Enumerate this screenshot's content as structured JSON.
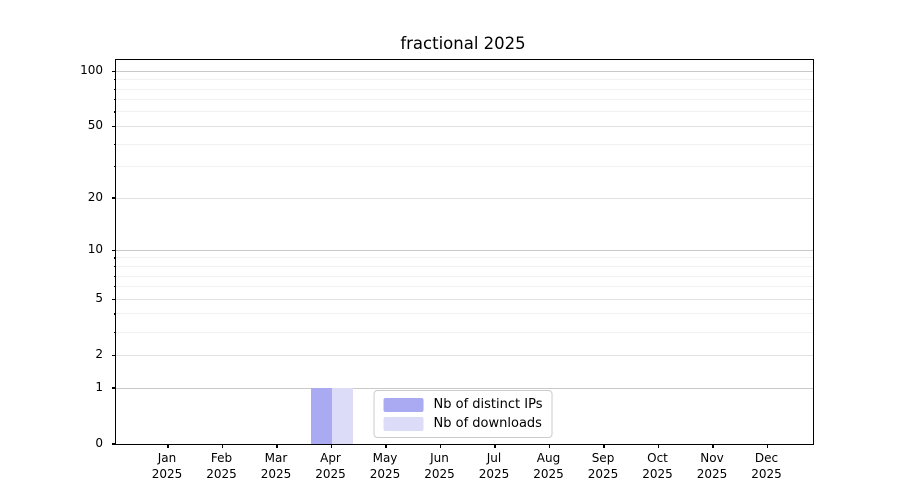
{
  "chart_data": {
    "type": "bar",
    "title": "fractional 2025",
    "x": {
      "year": "2025",
      "months": [
        "Jan",
        "Feb",
        "Mar",
        "Apr",
        "May",
        "Jun",
        "Jul",
        "Aug",
        "Sep",
        "Oct",
        "Nov",
        "Dec"
      ]
    },
    "y_axis": {
      "scale": "log1p",
      "ticks": [
        0,
        1,
        2,
        5,
        10,
        20,
        50,
        100
      ],
      "minor_ticks": [
        3,
        4,
        6,
        7,
        8,
        9,
        30,
        40,
        60,
        70,
        80,
        90
      ],
      "strong_gridlines": [
        1,
        10,
        100
      ],
      "max": 115
    },
    "series": [
      {
        "name": "Nb of distinct IPs",
        "color": "#aaaaf2",
        "values": [
          0,
          0,
          0,
          1,
          0,
          0,
          0,
          0,
          0,
          0,
          0,
          0
        ]
      },
      {
        "name": "Nb of downloads",
        "color": "#dcdcf8",
        "values": [
          0,
          0,
          0,
          1,
          0,
          0,
          0,
          0,
          0,
          0,
          0,
          0
        ]
      }
    ],
    "legend": {
      "position": "lower center",
      "entries": [
        "Nb of distinct IPs",
        "Nb of downloads"
      ]
    },
    "grid": "horizontal"
  }
}
